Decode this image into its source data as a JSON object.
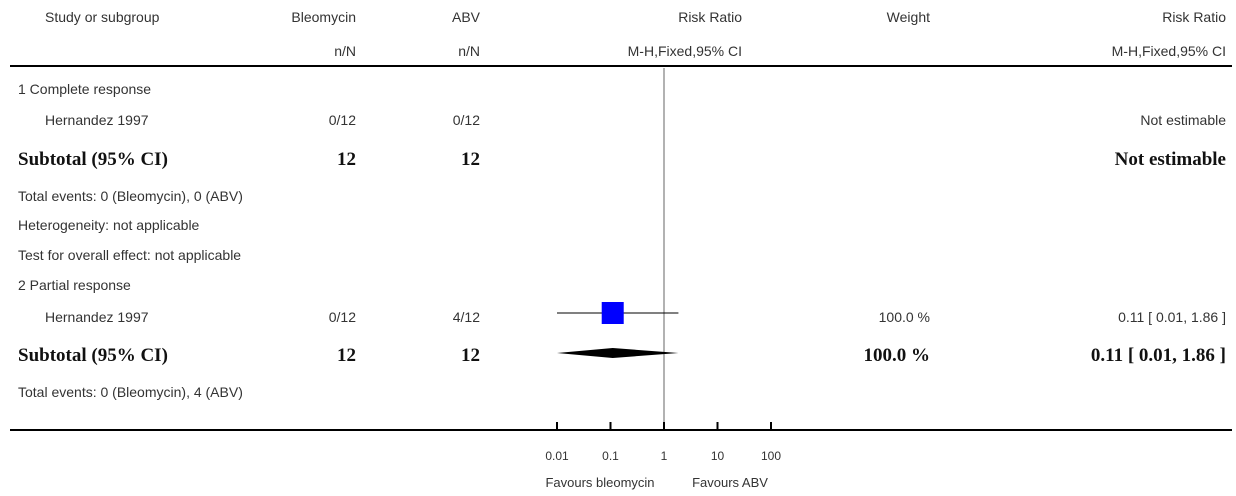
{
  "header": {
    "study_col": "Study or subgroup",
    "group1": "Bleomycin",
    "group2": "ABV",
    "effect_title": "Risk Ratio",
    "weight": "Weight",
    "effect_title_right": "Risk Ratio",
    "n1": "n/N",
    "n2": "n/N",
    "method": "M-H,Fixed,95% CI",
    "method_right": "M-H,Fixed,95% CI"
  },
  "rows": {
    "g1_label": "1 Complete response",
    "g1_study_name": "Hernandez 1997",
    "g1_study_n1": "0/12",
    "g1_study_n2": "0/12",
    "g1_study_ci": "Not estimable",
    "g1_subtotal_label": "Subtotal (95% CI)",
    "g1_subtotal_n1": "12",
    "g1_subtotal_n2": "12",
    "g1_subtotal_ci": "Not estimable",
    "g1_events": "Total events: 0 (Bleomycin), 0 (ABV)",
    "g1_heterogeneity": "Heterogeneity: not applicable",
    "g1_overall": "Test for overall effect: not applicable",
    "g2_label": "2 Partial response",
    "g2_study_name": "Hernandez 1997",
    "g2_study_n1": "0/12",
    "g2_study_n2": "4/12",
    "g2_study_weight": "100.0 %",
    "g2_study_ci": "0.11 [ 0.01, 1.86 ]",
    "g2_subtotal_label": "Subtotal (95% CI)",
    "g2_subtotal_n1": "12",
    "g2_subtotal_n2": "12",
    "g2_subtotal_weight": "100.0 %",
    "g2_subtotal_ci": "0.11 [ 0.01, 1.86 ]",
    "g2_events": "Total events: 0 (Bleomycin), 4 (ABV)"
  },
  "footer": {
    "favours_left": "Favours bleomycin",
    "favours_right": "Favours ABV"
  },
  "colors": {
    "square": "#0000ff",
    "diamond": "#000000",
    "line": "#000000",
    "null_line": "#666666"
  },
  "chart_data": {
    "type": "forest",
    "scale": "log",
    "xlim": [
      0.01,
      100
    ],
    "ticks": [
      {
        "value": 0.01,
        "label": "0.01"
      },
      {
        "value": 0.1,
        "label": "0.1"
      },
      {
        "value": 1,
        "label": "1"
      },
      {
        "value": 10,
        "label": "10"
      },
      {
        "value": 100,
        "label": "100"
      }
    ],
    "null_value": 1,
    "studies": [
      {
        "name": "Hernandez 1997",
        "subgroup": "2 Partial response",
        "estimate": 0.11,
        "lower": 0.01,
        "upper": 1.86,
        "weight": 100.0
      }
    ],
    "subtotals": [
      {
        "subgroup": "2 Partial response",
        "estimate": 0.11,
        "lower": 0.01,
        "upper": 1.86
      }
    ]
  }
}
